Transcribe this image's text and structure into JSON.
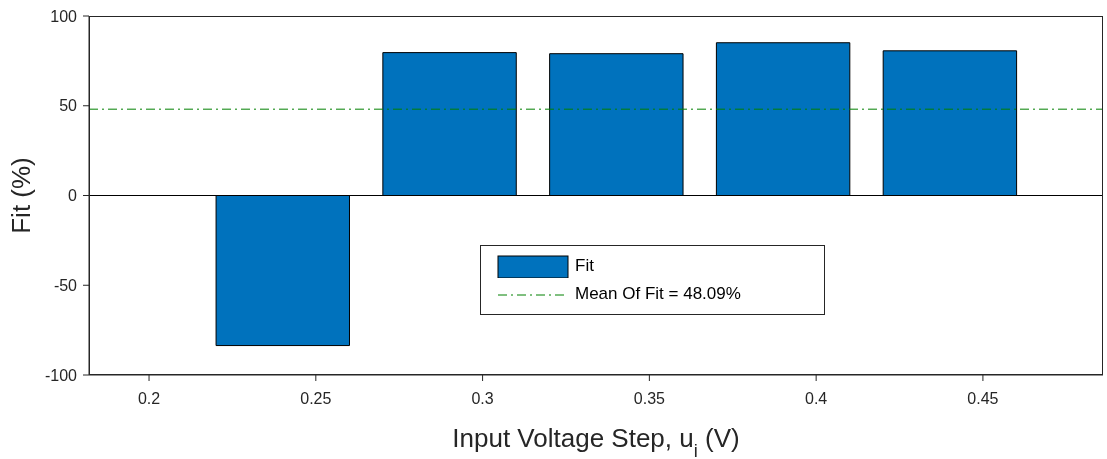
{
  "chart_data": {
    "type": "bar",
    "xlabel": "Input Voltage Step, u$_{i}$ (V)",
    "ylabel": "Fit (%)",
    "x": [
      0.24,
      0.29,
      0.34,
      0.39,
      0.44
    ],
    "series": [
      {
        "name": "Fit",
        "color": "#0072bd",
        "values": [
          -83.6,
          79.6,
          79.0,
          85.1,
          80.6
        ]
      }
    ],
    "xlim": [
      0.182,
      0.486
    ],
    "xticks": [
      0.2,
      0.25,
      0.3,
      0.35,
      0.4,
      0.45
    ],
    "ylim": [
      -100,
      100
    ],
    "yticks": [
      -100,
      -50,
      0,
      50,
      100
    ],
    "ref_lines": [
      {
        "axis": "y",
        "value": 48.09,
        "label": "Mean Of Fit = 48.09%",
        "color": "#008000",
        "line_style": "dashdot"
      }
    ],
    "legend": "bottom"
  }
}
